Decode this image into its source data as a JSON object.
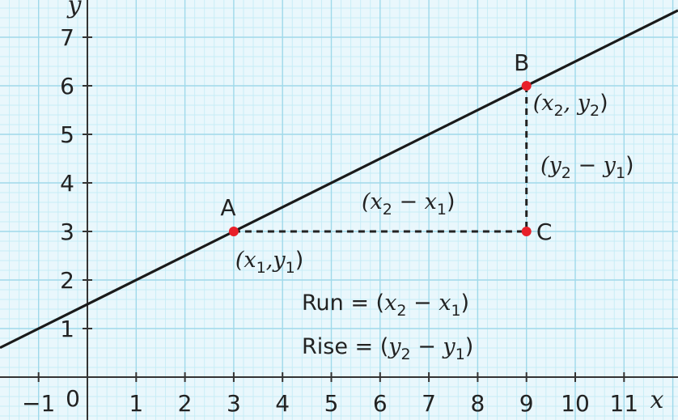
{
  "chart_data": {
    "type": "line",
    "title": "",
    "xlabel": "x",
    "ylabel": "y",
    "xlim": [
      -1.5,
      11.5
    ],
    "ylim": [
      -0.35,
      7.7
    ],
    "x_ticks": [
      -1,
      1,
      2,
      3,
      4,
      5,
      6,
      7,
      8,
      9,
      10,
      11
    ],
    "x_tick_labels": [
      "−1",
      "1",
      "2",
      "3",
      "4",
      "5",
      "6",
      "7",
      "8",
      "9",
      "10",
      "11"
    ],
    "y_ticks": [
      1,
      2,
      3,
      4,
      5,
      6,
      7
    ],
    "y_tick_labels": [
      "1",
      "2",
      "3",
      "4",
      "5",
      "6",
      "7"
    ],
    "origin_label": "0",
    "grid": true,
    "grid_color": "#9fd9ea",
    "grid_minor_color": "#c6ecf6",
    "background_color": "#e9f7fc",
    "line": {
      "slope": 0.5,
      "intercept": 1.5,
      "color": "#1a1a1a"
    },
    "points": [
      {
        "name": "A",
        "x": 3,
        "y": 3,
        "coord_label": [
          "(x",
          "1",
          ",y",
          "1",
          ")"
        ]
      },
      {
        "name": "B",
        "x": 9,
        "y": 6,
        "coord_label": [
          "(x",
          "2",
          ", y",
          "2",
          ")"
        ]
      },
      {
        "name": "C",
        "x": 9,
        "y": 3
      }
    ],
    "point_color": "#e8202a",
    "run_label": [
      "(x",
      "2",
      " − x",
      "1",
      ")"
    ],
    "rise_label": [
      "(y",
      "2",
      " − y",
      "1",
      ")"
    ],
    "run_formula": [
      "Run = (",
      "x",
      "2",
      " − ",
      "x",
      "1",
      ")"
    ],
    "rise_formula": [
      "Rise = (",
      "y",
      "2",
      " − ",
      "y",
      "1",
      ")"
    ]
  }
}
